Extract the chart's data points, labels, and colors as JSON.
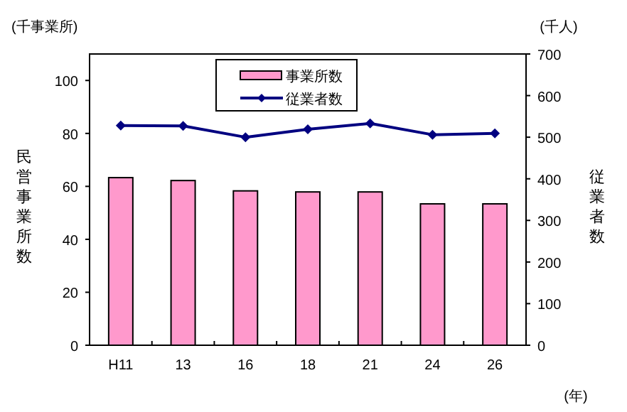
{
  "chart_data": {
    "type": "bar",
    "categories": [
      "H11",
      "13",
      "16",
      "18",
      "21",
      "24",
      "26"
    ],
    "ylabel": "民営事業所数",
    "y2label": "従業者数",
    "annotations": [
      "(千事業所)",
      "(千人)",
      "(年)"
    ],
    "series": [
      {
        "name": "事業所数",
        "color": "#ff99cc",
        "values": [
          63.3,
          62.2,
          58.3,
          57.9,
          57.9,
          53.4,
          53.4
        ]
      },
      {
        "name": "従業者数",
        "type": "line",
        "axis": "y2",
        "color": "#000080",
        "marker": "diamond",
        "values": [
          528,
          527,
          500,
          519,
          533,
          506,
          509
        ]
      }
    ],
    "ylim": [
      0,
      110
    ],
    "yticks": [
      0,
      20,
      40,
      60,
      80,
      100
    ],
    "y2lim": [
      0,
      700
    ],
    "y2ticks": [
      0,
      100,
      200,
      300,
      400,
      500,
      600,
      700
    ],
    "legend": "top",
    "grid": false
  }
}
